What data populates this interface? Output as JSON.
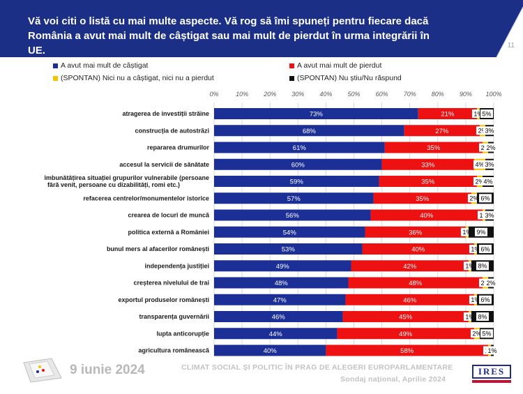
{
  "header": {
    "title_line1": "Vă voi citi o listă cu mai multe aspecte. Vă rog să îmi spuneți pentru fiecare dacă",
    "title_line2": "România a avut mai mult de câștigat sau mai mult de pierdut în urma integrării în UE.",
    "page_number": "11"
  },
  "legend": [
    {
      "label": "A avut mai mult de câștigat",
      "color": "#1b2f96"
    },
    {
      "label": "A avut mai mult de pierdut",
      "color": "#ee1111"
    },
    {
      "label": "(SPONTAN) Nici nu a câștigat, nici nu a pierdut",
      "color": "#f5c400"
    },
    {
      "label": "(SPONTAN) Nu știu/Nu răspund",
      "color": "#111111"
    }
  ],
  "chart_data": {
    "type": "bar",
    "orientation": "horizontal",
    "stacked": true,
    "x_ticks": [
      "0%",
      "10%",
      "20%",
      "30%",
      "40%",
      "50%",
      "60%",
      "70%",
      "80%",
      "90%",
      "100%"
    ],
    "xlim": [
      0,
      100
    ],
    "grid": true,
    "legend_position": "top",
    "categories": [
      "atragerea de investiții străine",
      "construcția de autostrăzi",
      "repararea drumurilor",
      "accesul la servicii de sănătate",
      "îmbunătățirea situației grupurilor vulnerabile (persoane fără venit, persoane cu dizabilități, romi etc.)",
      "refacerea centrelor/monumentelor istorice",
      "crearea de locuri de muncă",
      "politica externă a României",
      "bunul mers al afacerilor românești",
      "independența justiției",
      "creșterea nivelului de trai",
      "exportul produselor românești",
      "transparența guvernării",
      "lupta anticorupție",
      "agricultura românească"
    ],
    "series": [
      {
        "name": "A avut mai mult de câștigat",
        "color": "#1b2f96",
        "values": [
          73,
          68,
          61,
          60,
          59,
          57,
          56,
          54,
          53,
          49,
          48,
          47,
          46,
          44,
          40
        ]
      },
      {
        "name": "A avut mai mult de pierdut",
        "color": "#ee1111",
        "values": [
          21,
          27,
          35,
          33,
          35,
          35,
          40,
          36,
          40,
          42,
          48,
          46,
          45,
          49,
          58
        ]
      },
      {
        "name": "(SPONTAN) Nici nu a câștigat, nici nu a pierdut",
        "color": "#f5c400",
        "values": [
          1,
          2,
          2,
          4,
          2,
          2,
          1,
          1,
          1,
          1,
          2,
          1,
          1,
          2,
          1
        ]
      },
      {
        "name": "(SPONTAN) Nu știu/Nu răspund",
        "color": "#111111",
        "values": [
          5,
          3,
          2,
          3,
          4,
          6,
          3,
          9,
          6,
          8,
          2,
          6,
          8,
          5,
          1
        ]
      }
    ]
  },
  "footer": {
    "date": "9 iunie 2024",
    "line1": "CLIMAT SOCIAL ȘI POLITIC ÎN PRAG DE ALEGERI EUROPARLAMENTARE",
    "line2": "Sondaj național, Aprilie 2024",
    "logo_text": "IRES"
  }
}
